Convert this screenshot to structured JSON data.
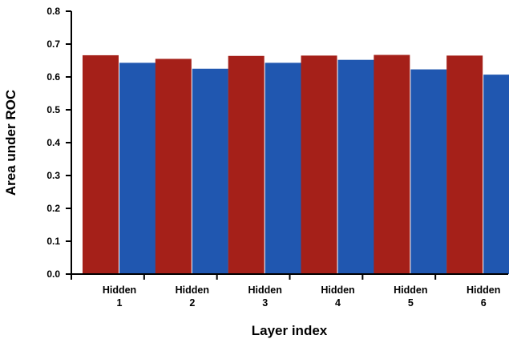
{
  "chart_data": {
    "type": "bar",
    "title": "",
    "xlabel": "Layer index",
    "ylabel": "Area under ROC",
    "categories": [
      [
        "Hidden",
        "1"
      ],
      [
        "Hidden",
        "2"
      ],
      [
        "Hidden",
        "3"
      ],
      [
        "Hidden",
        "4"
      ],
      [
        "Hidden",
        "5"
      ],
      [
        "Hidden",
        "6"
      ]
    ],
    "series": [
      {
        "color": "#a52019",
        "values": [
          0.666,
          0.655,
          0.664,
          0.665,
          0.667,
          0.665
        ]
      },
      {
        "color": "#2057b0",
        "values": [
          0.643,
          0.625,
          0.643,
          0.652,
          0.623,
          0.607
        ]
      }
    ],
    "ylim": [
      0,
      0.8
    ],
    "yticks": [
      "0.0",
      "0.1",
      "0.2",
      "0.3",
      "0.4",
      "0.5",
      "0.6",
      "0.7",
      "0.8"
    ],
    "grid": false,
    "legend": "none"
  }
}
